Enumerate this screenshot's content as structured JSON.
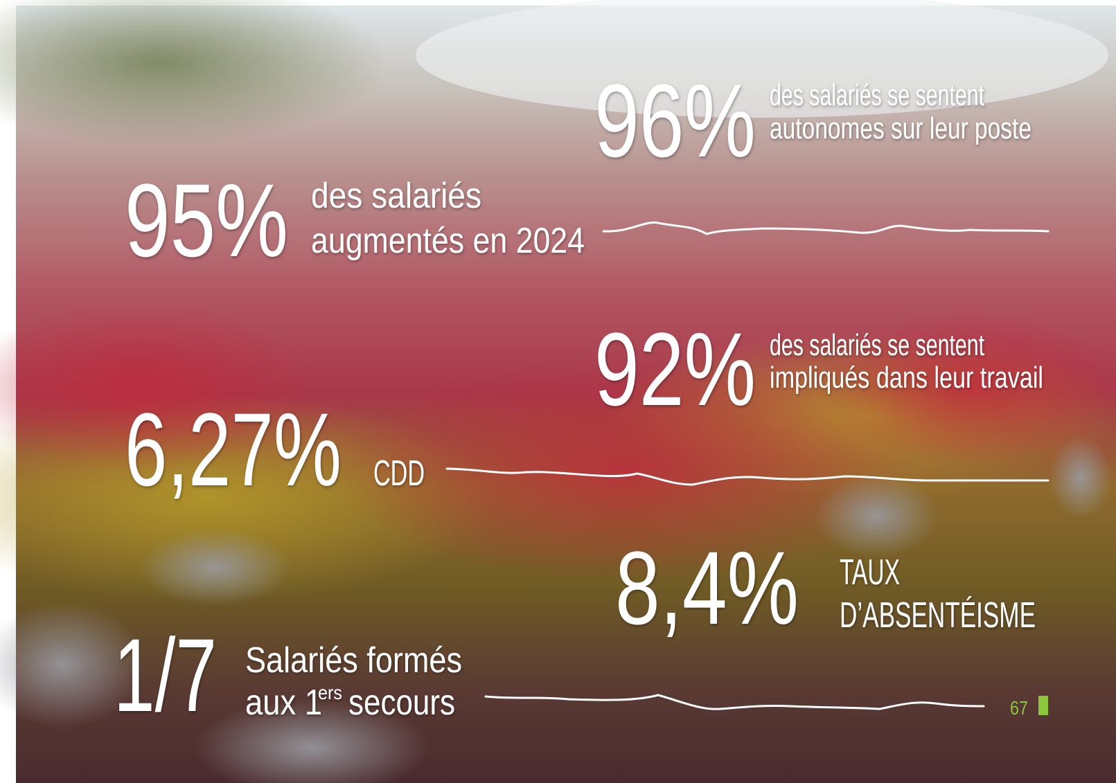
{
  "stats": [
    {
      "value": "96%",
      "lines": [
        "des salariés se sentent",
        "autonomes sur leur poste"
      ]
    },
    {
      "value": "95%",
      "lines": [
        "des salariés",
        "augmentés en 2024"
      ]
    },
    {
      "value": "92%",
      "lines": [
        "des salariés se sentent",
        "impliqués dans leur travail"
      ]
    },
    {
      "value": "6,27%",
      "lines": [
        "CDD"
      ]
    },
    {
      "value": "8,4%",
      "lines": [
        "TAUX",
        "D’ABSENTÉISME"
      ]
    }
  ],
  "first_aid": {
    "value": "1/7",
    "line1": "Salariés formés",
    "line2_start": "aux 1",
    "superscript": "ers",
    "line2_end": "secours"
  },
  "page_number": "67"
}
